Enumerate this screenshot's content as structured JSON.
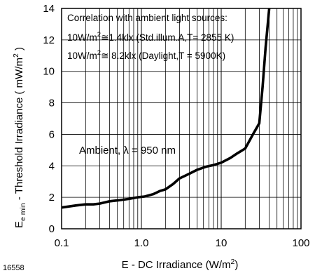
{
  "chart_data": {
    "type": "line",
    "xscale": "log",
    "xlim": [
      0.1,
      100
    ],
    "ylim": [
      0,
      14
    ],
    "grid": true,
    "x_ticks": [
      0.1,
      1.0,
      10,
      100
    ],
    "x_tick_labels": [
      "0.1",
      "1.0",
      "10",
      "100"
    ],
    "y_ticks": [
      0,
      2,
      4,
      6,
      8,
      10,
      12,
      14
    ],
    "y_tick_labels": [
      "0",
      "2",
      "4",
      "6",
      "8",
      "10",
      "12",
      "14"
    ],
    "xlabel_main": "E - DC Irradiance (W/m",
    "xlabel_sup": "2",
    "xlabel_end": ")",
    "ylabel_main": "E",
    "ylabel_sub": "e min",
    "ylabel_rest": " - Threshold Irradiance ( mW/m",
    "ylabel_sup": "2",
    "ylabel_end": " )",
    "annotation": {
      "line1": "Correlation with ambient light sources:",
      "line2_a": "10W/m",
      "line2_sup": "2",
      "line2_b": "≅1.4klx (Std.illum.A,T= 2855 K)",
      "line3_a": "10W/m",
      "line3_sup": "2",
      "line3_b": "≅ 8.2klx (Daylight,T = 5900K)"
    },
    "ambient_label": "Ambient, λ = 950 nm",
    "figure_id": "16558",
    "series": [
      {
        "color": "#000000",
        "x": [
          0.1,
          0.15,
          0.2,
          0.25,
          0.3,
          0.4,
          0.5,
          0.7,
          0.9,
          1.1,
          1.4,
          1.7,
          2.0,
          2.5,
          3.0,
          4.0,
          5.0,
          6.5,
          8.0,
          10,
          13,
          16,
          20,
          25,
          30,
          33,
          36,
          40,
          45
        ],
        "y": [
          1.35,
          1.48,
          1.55,
          1.55,
          1.6,
          1.75,
          1.8,
          1.9,
          2.0,
          2.05,
          2.2,
          2.4,
          2.5,
          2.85,
          3.2,
          3.5,
          3.75,
          3.95,
          4.05,
          4.2,
          4.5,
          4.8,
          5.1,
          6.0,
          6.7,
          9.0,
          11.5,
          14.0,
          16.0
        ]
      }
    ]
  }
}
